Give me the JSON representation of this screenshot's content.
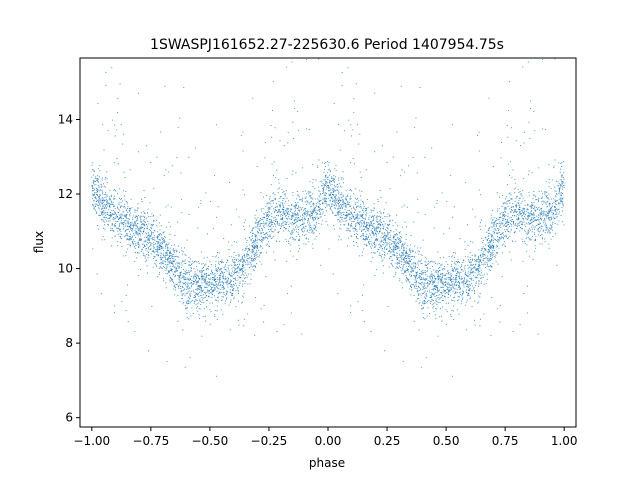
{
  "chart_data": {
    "type": "scatter",
    "title": "1SWASPJ161652.27-225630.6 Period 1407954.75s",
    "xlabel": "phase",
    "ylabel": "flux",
    "xlim": [
      -1.05,
      1.05
    ],
    "ylim": [
      5.75,
      15.65
    ],
    "x_ticks": [
      -1.0,
      -0.75,
      -0.5,
      -0.25,
      0.0,
      0.25,
      0.5,
      0.75,
      1.0
    ],
    "x_tick_labels": [
      "−1.00",
      "−0.75",
      "−0.50",
      "−0.25",
      "0.00",
      "0.25",
      "0.50",
      "0.75",
      "1.00"
    ],
    "y_ticks": [
      6,
      8,
      10,
      12,
      14
    ],
    "y_tick_labels": [
      "6",
      "8",
      "10",
      "12",
      "14"
    ],
    "grid": false,
    "legend": "none",
    "point_color": "#1f77b4",
    "phase_folded": true,
    "light_curve_profile": {
      "phase": [
        0.0,
        0.05,
        0.1,
        0.15,
        0.2,
        0.25,
        0.3,
        0.35,
        0.4,
        0.45,
        0.5,
        0.55,
        0.6,
        0.65,
        0.7,
        0.75,
        0.8,
        0.85,
        0.9,
        0.95,
        1.0
      ],
      "flux": [
        12.2,
        11.6,
        11.4,
        11.2,
        11.0,
        10.8,
        10.4,
        10.0,
        9.6,
        9.5,
        9.6,
        9.6,
        9.7,
        10.2,
        10.7,
        11.3,
        11.5,
        11.3,
        11.4,
        11.5,
        12.2
      ]
    },
    "spread": 0.35,
    "n_points_per_cycle": 3000
  }
}
